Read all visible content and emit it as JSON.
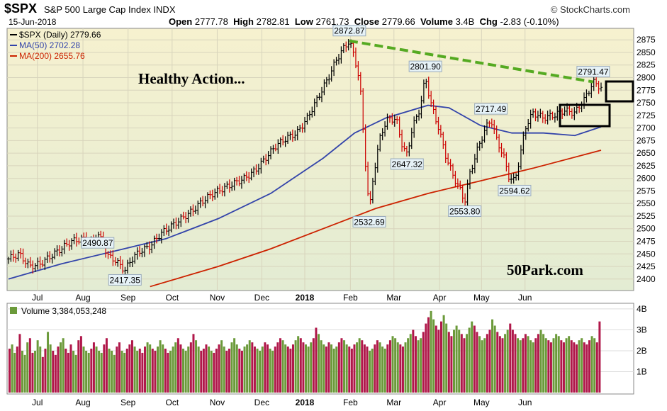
{
  "header": {
    "symbol": "$SPX",
    "name": "S&P 500 Large Cap Index INDX",
    "brand": "© StockCharts.com",
    "date": "15-Jun-2018",
    "open_label": "Open",
    "open": "2777.78",
    "high_label": "High",
    "high": "2782.81",
    "low_label": "Low",
    "low": "2761.73",
    "close_label": "Close",
    "close": "2779.66",
    "volume_label": "Volume",
    "volume": "3.4B",
    "chg_label": "Chg",
    "chg": "-2.83 (-0.10%)"
  },
  "legend": [
    {
      "text": "$SPX (Daily) 2779.66",
      "color": "#000000"
    },
    {
      "text": "MA(50) 2702.28",
      "color": "#3344aa"
    },
    {
      "text": "MA(200) 2655.76",
      "color": "#cc2200"
    }
  ],
  "volume_label": "Volume 3,384,053,248",
  "annotations": {
    "headline": "Healthy Action...",
    "watermark": "50Park.com"
  },
  "colors": {
    "price_bg_top": "#f6f1cf",
    "price_bg_bottom": "#e4ecd2",
    "up": "#000000",
    "down": "#cc0000",
    "ma50": "#3344aa",
    "ma200": "#cc2200",
    "vol_up": "#6b9a3a",
    "vol_down": "#b0184a",
    "trendline": "#55aa22"
  },
  "chart_data": {
    "type": "candlestick",
    "y_ticks": [
      2400,
      2425,
      2450,
      2475,
      2500,
      2525,
      2550,
      2575,
      2600,
      2625,
      2650,
      2675,
      2700,
      2725,
      2750,
      2775,
      2800,
      2825,
      2850,
      2875
    ],
    "y_range": [
      2380,
      2895
    ],
    "x_labels": [
      "Jul",
      "Aug",
      "Sep",
      "Oct",
      "Nov",
      "Dec",
      "2018",
      "Feb",
      "Mar",
      "Apr",
      "May",
      "Jun"
    ],
    "x_label_positions": [
      0.055,
      0.142,
      0.228,
      0.312,
      0.398,
      0.483,
      0.565,
      0.652,
      0.735,
      0.822,
      0.902,
      0.985
    ],
    "price_path": [
      [
        0.0,
        2440
      ],
      [
        0.02,
        2450
      ],
      [
        0.04,
        2425
      ],
      [
        0.06,
        2430
      ],
      [
        0.08,
        2445
      ],
      [
        0.1,
        2460
      ],
      [
        0.12,
        2475
      ],
      [
        0.142,
        2480
      ],
      [
        0.16,
        2472
      ],
      [
        0.17,
        2490.87
      ],
      [
        0.18,
        2470
      ],
      [
        0.19,
        2445
      ],
      [
        0.2,
        2440
      ],
      [
        0.21,
        2430
      ],
      [
        0.222,
        2417.35
      ],
      [
        0.235,
        2440
      ],
      [
        0.25,
        2455
      ],
      [
        0.27,
        2465
      ],
      [
        0.29,
        2490
      ],
      [
        0.31,
        2505
      ],
      [
        0.33,
        2520
      ],
      [
        0.35,
        2535
      ],
      [
        0.37,
        2555
      ],
      [
        0.39,
        2570
      ],
      [
        0.41,
        2580
      ],
      [
        0.43,
        2590
      ],
      [
        0.45,
        2600
      ],
      [
        0.47,
        2615
      ],
      [
        0.49,
        2640
      ],
      [
        0.51,
        2665
      ],
      [
        0.53,
        2680
      ],
      [
        0.55,
        2690
      ],
      [
        0.57,
        2720
      ],
      [
        0.59,
        2760
      ],
      [
        0.61,
        2800
      ],
      [
        0.625,
        2835
      ],
      [
        0.64,
        2860
      ],
      [
        0.65,
        2872.87
      ],
      [
        0.66,
        2840
      ],
      [
        0.67,
        2790
      ],
      [
        0.68,
        2640
      ],
      [
        0.688,
        2532.69
      ],
      [
        0.695,
        2600
      ],
      [
        0.71,
        2690
      ],
      [
        0.725,
        2720
      ],
      [
        0.74,
        2715
      ],
      [
        0.752,
        2660
      ],
      [
        0.76,
        2647.32
      ],
      [
        0.77,
        2700
      ],
      [
        0.785,
        2740
      ],
      [
        0.795,
        2801.9
      ],
      [
        0.805,
        2750
      ],
      [
        0.82,
        2700
      ],
      [
        0.835,
        2640
      ],
      [
        0.85,
        2600
      ],
      [
        0.86,
        2580
      ],
      [
        0.87,
        2553.8
      ],
      [
        0.88,
        2610
      ],
      [
        0.895,
        2660
      ],
      [
        0.91,
        2700
      ],
      [
        0.92,
        2717.49
      ],
      [
        0.93,
        2680
      ],
      [
        0.945,
        2640
      ],
      [
        0.955,
        2600
      ],
      [
        0.965,
        2594.62
      ],
      [
        0.975,
        2640
      ],
      [
        0.985,
        2700
      ],
      [
        1.0,
        2730
      ],
      [
        1.02,
        2720
      ],
      [
        1.04,
        2725
      ],
      [
        1.06,
        2735
      ],
      [
        1.08,
        2730
      ],
      [
        1.1,
        2760
      ],
      [
        1.115,
        2791.47
      ],
      [
        1.13,
        2780
      ]
    ],
    "ma50_path": [
      [
        0.0,
        2400
      ],
      [
        0.1,
        2430
      ],
      [
        0.2,
        2455
      ],
      [
        0.3,
        2480
      ],
      [
        0.4,
        2520
      ],
      [
        0.5,
        2570
      ],
      [
        0.6,
        2640
      ],
      [
        0.66,
        2690
      ],
      [
        0.72,
        2720
      ],
      [
        0.8,
        2745
      ],
      [
        0.84,
        2740
      ],
      [
        0.9,
        2705
      ],
      [
        0.96,
        2690
      ],
      [
        1.02,
        2690
      ],
      [
        1.08,
        2685
      ],
      [
        1.13,
        2702.28
      ]
    ],
    "ma200_path": [
      [
        0.27,
        2385
      ],
      [
        0.4,
        2425
      ],
      [
        0.5,
        2460
      ],
      [
        0.6,
        2500
      ],
      [
        0.7,
        2540
      ],
      [
        0.8,
        2570
      ],
      [
        0.9,
        2595
      ],
      [
        1.0,
        2620
      ],
      [
        1.13,
        2655.76
      ]
    ],
    "trendline": [
      [
        0.65,
        2872.87
      ],
      [
        1.115,
        2791.47
      ]
    ],
    "price_labels": [
      {
        "text": "2872.87",
        "x": 0.65,
        "y": 2872.87
      },
      {
        "text": "2801.90",
        "x": 0.795,
        "y": 2801.9
      },
      {
        "text": "2791.47",
        "x": 1.115,
        "y": 2791.47
      },
      {
        "text": "2717.49",
        "x": 0.92,
        "y": 2717.49
      },
      {
        "text": "2647.32",
        "x": 0.76,
        "y": 2647.32
      },
      {
        "text": "2490.87",
        "x": 0.17,
        "y": 2490.87
      },
      {
        "text": "2417.35",
        "x": 0.222,
        "y": 2417.35
      },
      {
        "text": "2532.69",
        "x": 0.688,
        "y": 2532.69
      },
      {
        "text": "2553.80",
        "x": 0.87,
        "y": 2553.8
      },
      {
        "text": "2594.62",
        "x": 0.965,
        "y": 2594.62
      }
    ],
    "volume": {
      "y_ticks": [
        "1B",
        "2B",
        "3B",
        "4B"
      ],
      "y_tick_values": [
        1,
        2,
        3,
        4
      ],
      "y_range": [
        0,
        4.2
      ],
      "bars": [
        2.1,
        2.3,
        1.9,
        2.2,
        2.8,
        2.0,
        1.8,
        2.4,
        2.6,
        1.9,
        2.0,
        2.5,
        2.2,
        1.7,
        2.1,
        2.9,
        2.3,
        2.0,
        1.8,
        2.2,
        2.4,
        2.6,
        2.1,
        1.9,
        2.3,
        2.0,
        1.8,
        2.5,
        2.7,
        2.2,
        2.0,
        1.9,
        2.1,
        2.4,
        2.2,
        2.0,
        1.9,
        2.3,
        2.6,
        2.1,
        2.0,
        1.8,
        2.2,
        2.4,
        2.0,
        1.9,
        2.1,
        2.3,
        2.5,
        2.2,
        2.0,
        2.1,
        1.9,
        2.2,
        2.4,
        2.3,
        2.1,
        2.0,
        2.2,
        2.5,
        2.3,
        2.1,
        1.9,
        2.0,
        2.2,
        2.4,
        2.6,
        2.3,
        2.1,
        2.0,
        2.2,
        2.4,
        2.8,
        2.5,
        2.2,
        2.0,
        2.1,
        2.3,
        2.2,
        2.0,
        1.9,
        2.1,
        2.3,
        2.5,
        2.2,
        2.0,
        2.1,
        2.4,
        2.6,
        2.3,
        2.1,
        2.0,
        2.2,
        2.3,
        2.5,
        2.4,
        2.2,
        2.1,
        2.0,
        2.2,
        2.4,
        2.3,
        2.1,
        2.0,
        2.2,
        2.4,
        2.6,
        2.5,
        2.3,
        2.2,
        2.1,
        2.3,
        2.5,
        2.7,
        2.6,
        2.4,
        2.3,
        2.2,
        2.4,
        2.6,
        3.1,
        2.8,
        2.5,
        2.3,
        2.2,
        2.4,
        2.3,
        2.1,
        2.2,
        2.4,
        2.6,
        2.5,
        2.3,
        2.2,
        2.1,
        2.3,
        2.4,
        2.6,
        2.5,
        2.3,
        2.2,
        2.0,
        2.1,
        2.3,
        2.5,
        2.4,
        2.2,
        2.1,
        2.3,
        2.5,
        2.7,
        2.6,
        2.4,
        2.3,
        2.2,
        2.4,
        2.6,
        2.8,
        3.0,
        2.7,
        2.5,
        2.6,
        2.9,
        3.3,
        3.6,
        3.9,
        3.5,
        3.2,
        3.0,
        3.4,
        3.7,
        3.3,
        2.9,
        2.7,
        3.0,
        3.2,
        3.0,
        2.8,
        2.6,
        2.8,
        3.1,
        3.4,
        3.2,
        2.9,
        2.7,
        2.5,
        2.6,
        2.8,
        3.0,
        3.5,
        3.2,
        2.9,
        2.7,
        2.6,
        2.8,
        3.0,
        3.3,
        3.0,
        2.8,
        2.6,
        2.5,
        2.6,
        2.8,
        2.7,
        2.5,
        2.4,
        2.6,
        2.8,
        3.0,
        2.8,
        2.6,
        2.5,
        2.4,
        2.6,
        2.8,
        2.7,
        2.5,
        2.4,
        2.6,
        2.7,
        2.5,
        2.4,
        2.3,
        2.5,
        2.6,
        2.4,
        2.3,
        2.5,
        2.7,
        2.6,
        2.4,
        3.4
      ]
    }
  }
}
